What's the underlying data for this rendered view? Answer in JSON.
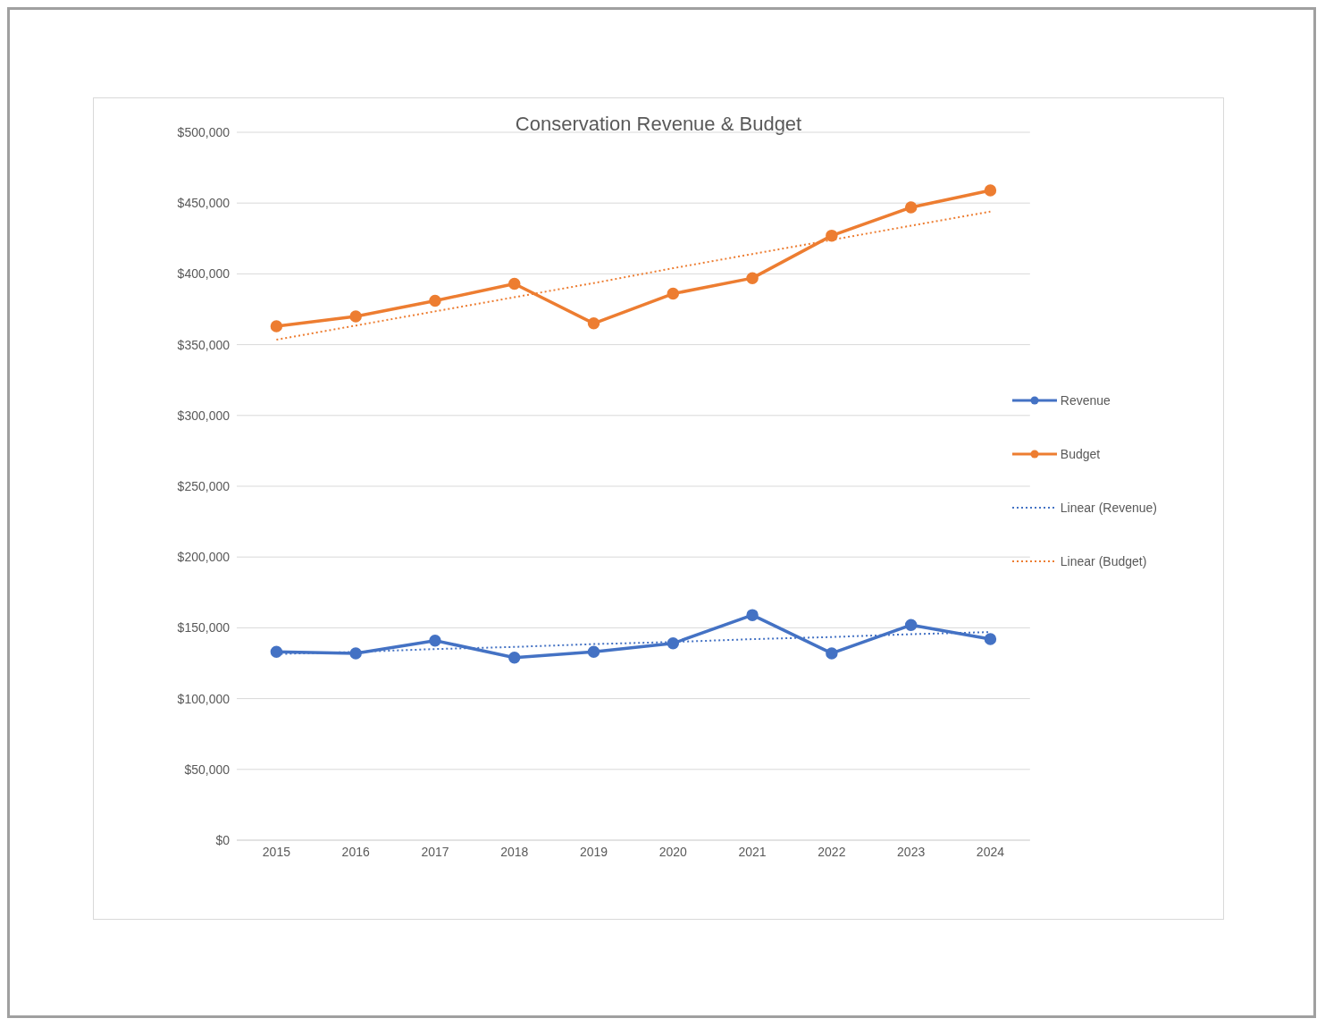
{
  "chart_data": {
    "type": "line",
    "title": "Conservation Revenue & Budget",
    "x": [
      2015,
      2016,
      2017,
      2018,
      2019,
      2020,
      2021,
      2022,
      2023,
      2024
    ],
    "xlim": [
      2014.5,
      2024.5
    ],
    "xticks": [
      2015,
      2016,
      2017,
      2018,
      2019,
      2020,
      2021,
      2022,
      2023,
      2024
    ],
    "ylim": [
      0,
      500000
    ],
    "yticks": [
      {
        "value": 0,
        "label": "$0"
      },
      {
        "value": 50000,
        "label": "$50,000"
      },
      {
        "value": 100000,
        "label": "$100,000"
      },
      {
        "value": 150000,
        "label": "$150,000"
      },
      {
        "value": 200000,
        "label": "$200,000"
      },
      {
        "value": 250000,
        "label": "$250,000"
      },
      {
        "value": 300000,
        "label": "$300,000"
      },
      {
        "value": 350000,
        "label": "$350,000"
      },
      {
        "value": 400000,
        "label": "$400,000"
      },
      {
        "value": 450000,
        "label": "$450,000"
      },
      {
        "value": 500000,
        "label": "$500,000"
      }
    ],
    "grid": "y",
    "legend": "right",
    "series": [
      {
        "name": "Revenue",
        "color": "#4472c4",
        "marker": "circle",
        "line_style": "solid",
        "values": [
          133000,
          132000,
          141000,
          129000,
          133000,
          139000,
          159000,
          132000,
          152000,
          142000
        ]
      },
      {
        "name": "Budget",
        "color": "#ed7d31",
        "marker": "circle",
        "line_style": "solid",
        "values": [
          363000,
          370000,
          381000,
          393000,
          365000,
          386000,
          397000,
          427000,
          447000,
          459000
        ]
      },
      {
        "name": "Linear (Revenue)",
        "color": "#4472c4",
        "marker": "none",
        "line_style": "dotted",
        "values": [
          131500,
          133000,
          135000,
          136500,
          138500,
          140000,
          142000,
          143500,
          145500,
          147000
        ]
      },
      {
        "name": "Linear (Budget)",
        "color": "#ed7d31",
        "marker": "none",
        "line_style": "dotted",
        "values": [
          353500,
          363500,
          373500,
          383500,
          393500,
          404000,
          414000,
          424000,
          434000,
          444000
        ]
      }
    ]
  }
}
